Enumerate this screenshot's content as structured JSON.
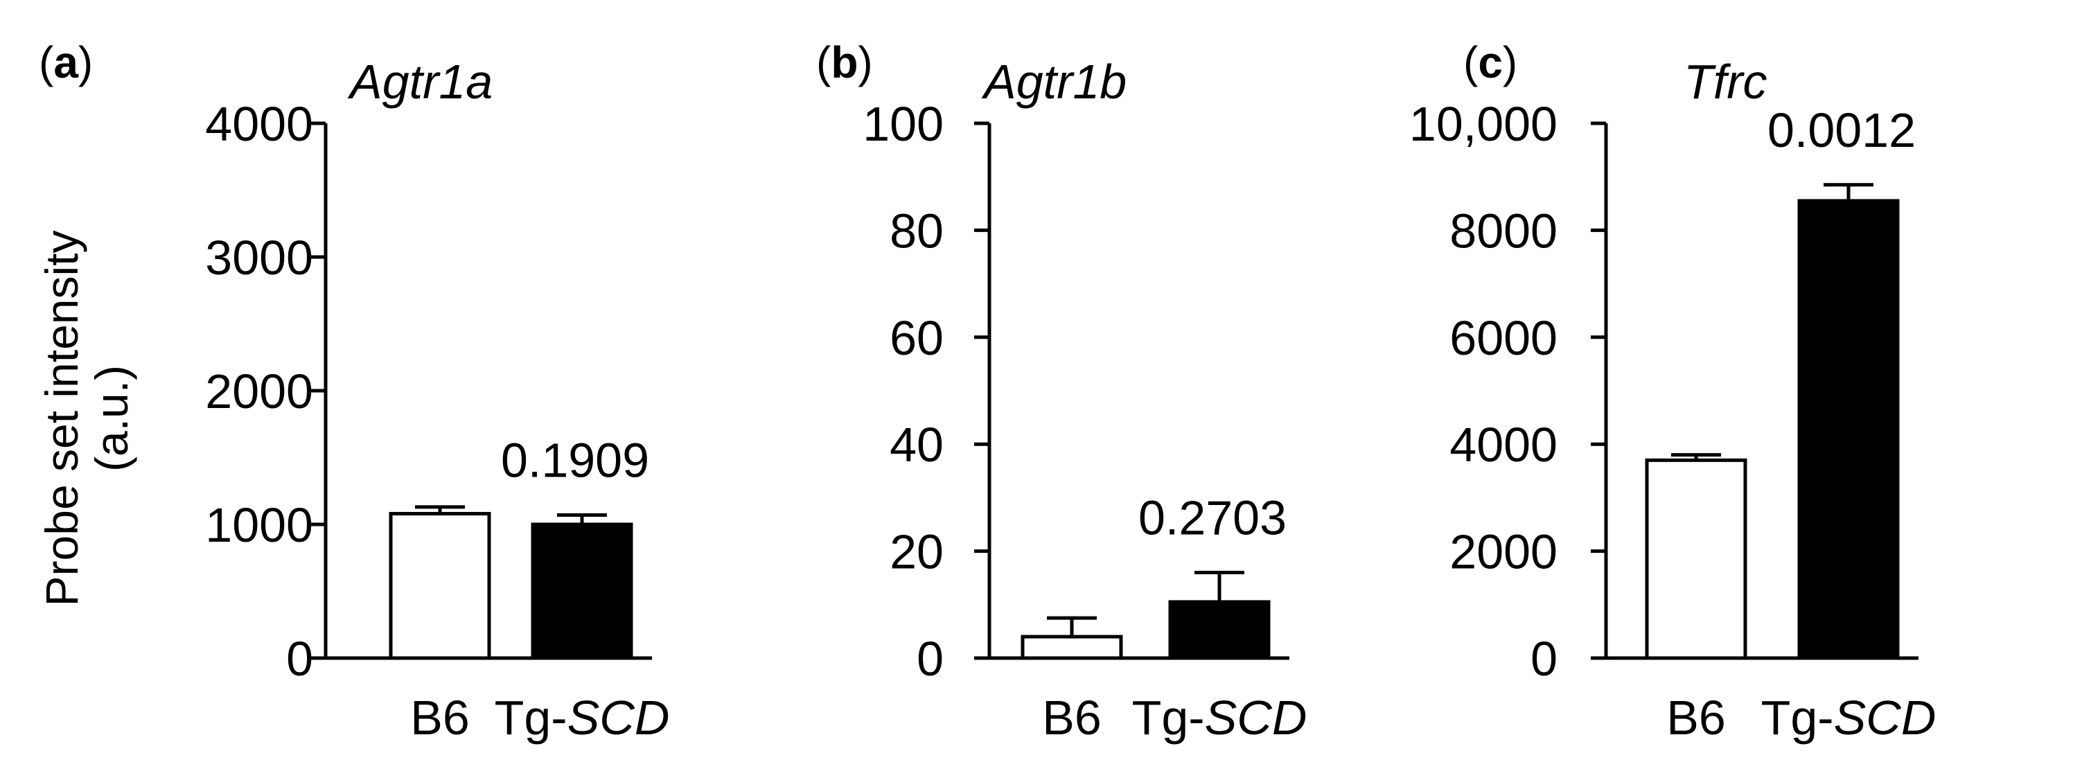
{
  "colors": {
    "axis": "#000000",
    "control_fill": "#ffffff",
    "treatment_fill": "#000000"
  },
  "chart_data": [
    {
      "type": "bar",
      "panel_label": "a",
      "title": "Agtr1a",
      "ylabel": "Probe set intensity (a.u.)",
      "ylabel_lines": [
        "Probe set intensity",
        "(a.u.)"
      ],
      "categories": [
        "B6",
        "Tg-SCD"
      ],
      "category_parts": [
        {
          "plain": "B6",
          "italic": ""
        },
        {
          "plain": "Tg-",
          "italic": "SCD"
        }
      ],
      "values": [
        1080,
        1000
      ],
      "errors": [
        50,
        70
      ],
      "fills": [
        "#ffffff",
        "#000000"
      ],
      "p_value": "0.1909",
      "ylim": [
        0,
        4000
      ],
      "yticks": [
        0,
        1000,
        2000,
        3000,
        4000
      ],
      "ytick_labels": [
        "0",
        "1000",
        "2000",
        "3000",
        "4000"
      ],
      "grid": false
    },
    {
      "type": "bar",
      "panel_label": "b",
      "title": "Agtr1b",
      "ylabel": "",
      "categories": [
        "B6",
        "Tg-SCD"
      ],
      "category_parts": [
        {
          "plain": "B6",
          "italic": ""
        },
        {
          "plain": "Tg-",
          "italic": "SCD"
        }
      ],
      "values": [
        4,
        10.5
      ],
      "errors": [
        3.5,
        5.5
      ],
      "fills": [
        "#ffffff",
        "#000000"
      ],
      "p_value": "0.2703",
      "ylim": [
        0,
        100
      ],
      "yticks": [
        0,
        20,
        40,
        60,
        80,
        100
      ],
      "ytick_labels": [
        "0",
        "20",
        "40",
        "60",
        "80",
        "100"
      ],
      "grid": false
    },
    {
      "type": "bar",
      "panel_label": "c",
      "title": "Tfrc",
      "ylabel": "",
      "categories": [
        "B6",
        "Tg-SCD"
      ],
      "category_parts": [
        {
          "plain": "B6",
          "italic": ""
        },
        {
          "plain": "Tg-",
          "italic": "SCD"
        }
      ],
      "values": [
        3700,
        8550
      ],
      "errors": [
        100,
        300
      ],
      "fills": [
        "#ffffff",
        "#000000"
      ],
      "p_value": "0.0012",
      "ylim": [
        0,
        10000
      ],
      "yticks": [
        0,
        2000,
        4000,
        6000,
        8000,
        10000
      ],
      "ytick_labels": [
        "0",
        "2000",
        "4000",
        "6000",
        "8000",
        "10,000"
      ],
      "grid": false
    }
  ]
}
